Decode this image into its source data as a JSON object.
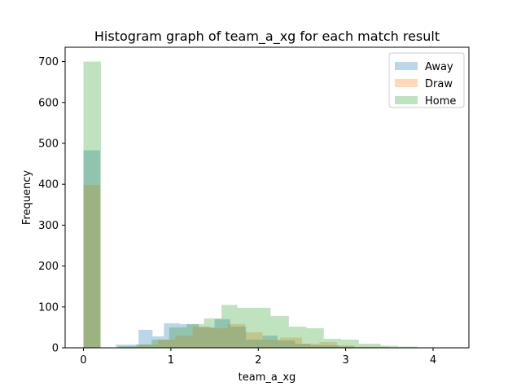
{
  "chart_data": {
    "type": "histogram",
    "title": "Histogram graph of team_a_xg for each match result",
    "xlabel": "team_a_xg",
    "ylabel": "Frequency",
    "xlim": [
      -0.21,
      4.41
    ],
    "ylim": [
      0,
      735
    ],
    "xticks": [
      0,
      1,
      2,
      3,
      4
    ],
    "yticks": [
      0,
      100,
      200,
      300,
      400,
      500,
      600,
      700
    ],
    "legend_position": "top-right",
    "bar_opacity": 0.3,
    "series": [
      {
        "name": "Away",
        "color": "#1f77b4",
        "bins": [
          [
            0.0,
            0.19,
            483
          ],
          [
            0.37,
            0.63,
            8
          ],
          [
            0.63,
            0.79,
            44
          ],
          [
            0.79,
            0.92,
            28
          ],
          [
            0.92,
            1.1,
            60
          ],
          [
            1.1,
            1.32,
            58
          ],
          [
            1.32,
            1.5,
            50
          ],
          [
            1.5,
            1.68,
            70
          ],
          [
            1.68,
            1.86,
            52
          ],
          [
            1.86,
            2.05,
            20
          ],
          [
            2.05,
            2.22,
            30
          ],
          [
            2.22,
            2.42,
            18
          ],
          [
            2.42,
            2.6,
            10
          ],
          [
            2.6,
            2.92,
            6
          ],
          [
            2.92,
            3.1,
            3
          ]
        ]
      },
      {
        "name": "Draw",
        "color": "#ff7f0e",
        "bins": [
          [
            0.0,
            0.19,
            398
          ],
          [
            0.63,
            0.85,
            8
          ],
          [
            0.85,
            1.05,
            20
          ],
          [
            1.05,
            1.25,
            30
          ],
          [
            1.25,
            1.45,
            52
          ],
          [
            1.45,
            1.65,
            48
          ],
          [
            1.65,
            1.85,
            58
          ],
          [
            1.85,
            2.05,
            38
          ],
          [
            2.05,
            2.25,
            20
          ],
          [
            2.25,
            2.5,
            25
          ],
          [
            2.5,
            2.7,
            10
          ],
          [
            2.7,
            2.9,
            14
          ],
          [
            2.9,
            3.1,
            6
          ],
          [
            3.1,
            3.5,
            3
          ]
        ]
      },
      {
        "name": "Home",
        "color": "#2ca02c",
        "bins": [
          [
            0.0,
            0.2,
            700
          ],
          [
            0.4,
            0.6,
            4
          ],
          [
            0.6,
            0.78,
            8
          ],
          [
            0.78,
            0.98,
            20
          ],
          [
            0.98,
            1.18,
            50
          ],
          [
            1.18,
            1.38,
            58
          ],
          [
            1.38,
            1.58,
            72
          ],
          [
            1.58,
            1.76,
            105
          ],
          [
            1.76,
            2.14,
            98
          ],
          [
            2.14,
            2.35,
            78
          ],
          [
            2.35,
            2.55,
            52
          ],
          [
            2.55,
            2.75,
            48
          ],
          [
            2.75,
            2.95,
            22
          ],
          [
            2.95,
            3.15,
            20
          ],
          [
            3.15,
            3.4,
            10
          ],
          [
            3.4,
            3.6,
            5
          ],
          [
            3.6,
            3.82,
            3
          ],
          [
            3.82,
            4.2,
            1
          ]
        ]
      }
    ]
  }
}
